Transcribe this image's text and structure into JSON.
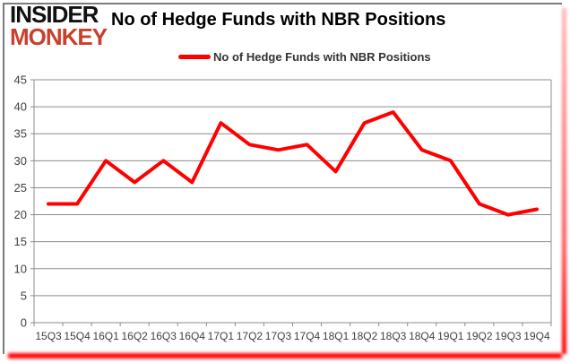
{
  "logo": {
    "line1": "INSIDER",
    "line2": "MONKEY"
  },
  "header": {
    "title": "No of Hedge Funds with NBR Positions"
  },
  "legend": {
    "label": "No of Hedge Funds with NBR Positions"
  },
  "colors": {
    "series_line": "#ff0000",
    "logo_red": "#c9402c",
    "gridline": "#8c8c8c",
    "axis": "#8c8c8c",
    "tick_label": "#404040",
    "panel_border": "#7b7b7b"
  },
  "chart_data": {
    "type": "line",
    "title": "No of Hedge Funds with NBR Positions",
    "categories": [
      "15Q3",
      "15Q4",
      "16Q1",
      "16Q2",
      "16Q3",
      "16Q4",
      "17Q1",
      "17Q2",
      "17Q3",
      "17Q4",
      "18Q1",
      "18Q2",
      "18Q3",
      "18Q4",
      "19Q1",
      "19Q2",
      "19Q3",
      "19Q4"
    ],
    "series": [
      {
        "name": "No of Hedge Funds with NBR Positions",
        "values": [
          22,
          22,
          30,
          26,
          30,
          26,
          37,
          33,
          32,
          33,
          28,
          37,
          39,
          32,
          30,
          22,
          20,
          21
        ]
      }
    ],
    "xlabel": "",
    "ylabel": "",
    "ylim": [
      0,
      45
    ],
    "ytick_step": 5,
    "grid": true,
    "legend_position": "top"
  }
}
